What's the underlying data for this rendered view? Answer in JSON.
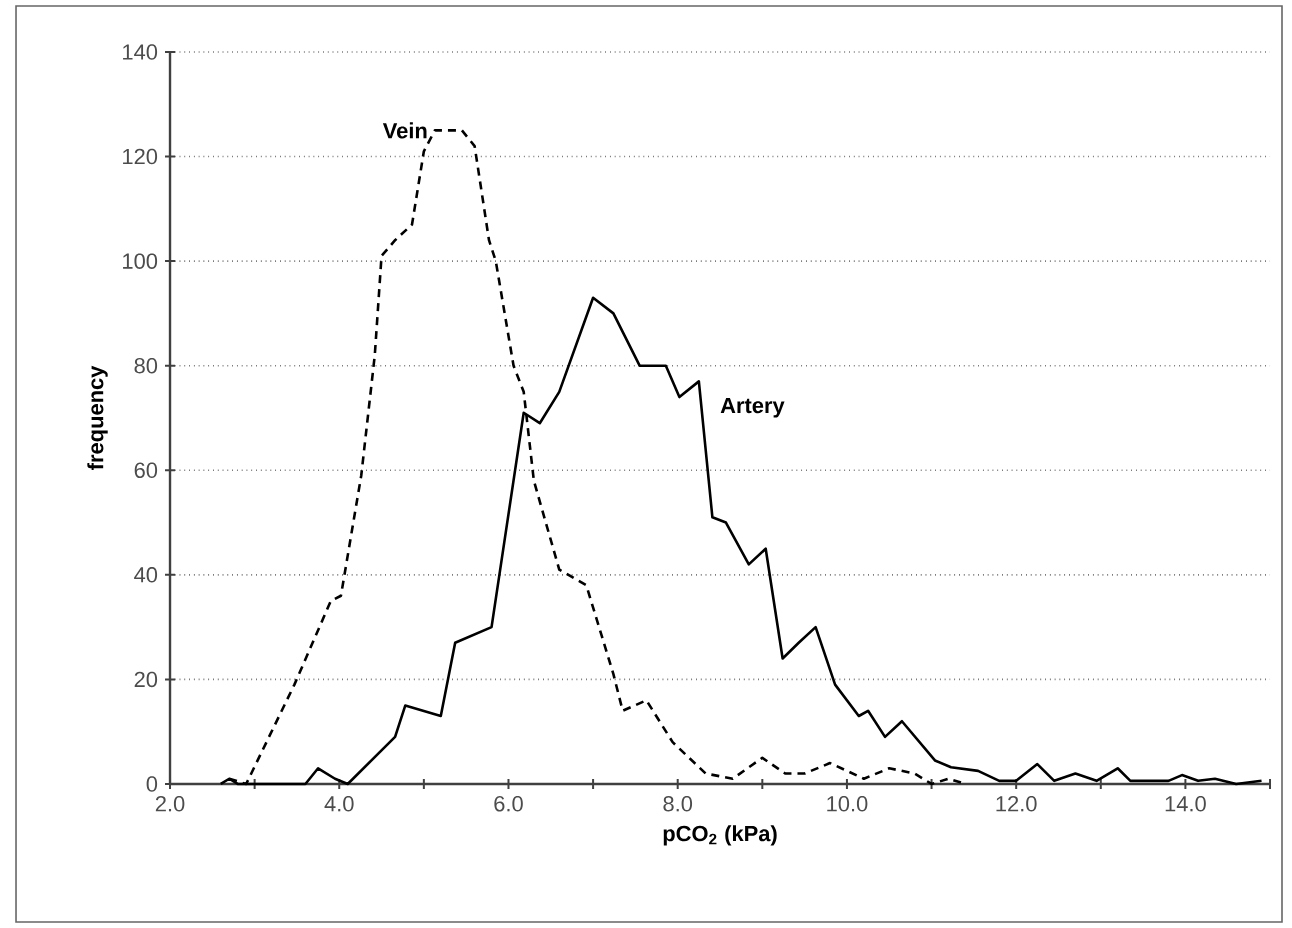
{
  "chart_data": {
    "type": "line",
    "xlabel": "pCO$_{2}$ (kPa)",
    "ylabel": "frequency",
    "xlim": [
      2,
      15
    ],
    "ylim": [
      0,
      140
    ],
    "xticks": [
      {
        "value": 2,
        "label": "2.0"
      },
      {
        "value": 3,
        "label": null
      },
      {
        "value": 4,
        "label": "4.0"
      },
      {
        "value": 5,
        "label": null
      },
      {
        "value": 6,
        "label": "6.0"
      },
      {
        "value": 7,
        "label": null
      },
      {
        "value": 8,
        "label": "8.0"
      },
      {
        "value": 9,
        "label": null
      },
      {
        "value": 10,
        "label": "10.0"
      },
      {
        "value": 11,
        "label": null
      },
      {
        "value": 12,
        "label": "12.0"
      },
      {
        "value": 13,
        "label": null
      },
      {
        "value": 14,
        "label": "14.0"
      },
      {
        "value": 15,
        "label": null
      }
    ],
    "yticks": [
      0,
      20,
      40,
      60,
      80,
      100,
      120,
      140
    ],
    "grid": "y",
    "legend": false,
    "marker": "none",
    "series": [
      {
        "name": "Vein",
        "color": "#000000",
        "line_style": "dashed",
        "x": [
          2.7,
          2.9,
          3.47,
          3.9,
          4.02,
          4.26,
          4.42,
          4.5,
          4.66,
          4.86,
          5.0,
          5.13,
          5.45,
          5.6,
          5.77,
          5.85,
          6.06,
          6.18,
          6.3,
          6.6,
          6.92,
          7.24,
          7.35,
          7.63,
          7.94,
          8.33,
          8.65,
          9.0,
          9.27,
          9.5,
          9.8,
          10.2,
          10.5,
          10.8,
          11.0,
          11.2,
          11.4
        ],
        "values": [
          1,
          0,
          19,
          35,
          36,
          59,
          82,
          101,
          104,
          107,
          121,
          125,
          125,
          122,
          104,
          100,
          80,
          75,
          58,
          41,
          38,
          21,
          14,
          16,
          8,
          2,
          1,
          5,
          2,
          2,
          4,
          1,
          3,
          2,
          0,
          1,
          0
        ]
      },
      {
        "name": "Artery",
        "color": "#000000",
        "line_style": "solid",
        "x": [
          2.6,
          2.7,
          2.8,
          3.6,
          3.75,
          3.95,
          4.1,
          4.66,
          4.78,
          5.2,
          5.37,
          5.8,
          6.18,
          6.37,
          6.6,
          7.0,
          7.24,
          7.55,
          7.86,
          8.02,
          8.25,
          8.41,
          8.57,
          8.84,
          9.04,
          9.24,
          9.43,
          9.63,
          9.86,
          10.14,
          10.25,
          10.45,
          10.65,
          11.04,
          11.23,
          11.55,
          11.8,
          12.0,
          12.25,
          12.45,
          12.7,
          12.95,
          13.2,
          13.35,
          13.8,
          13.96,
          14.15,
          14.35,
          14.6,
          14.9
        ],
        "values": [
          0,
          1,
          0,
          0,
          3,
          1,
          0,
          9,
          15,
          13,
          27,
          30,
          71,
          69,
          75,
          93,
          90,
          80,
          80,
          74,
          77,
          51,
          50,
          42,
          45,
          24,
          27,
          30,
          19,
          13,
          14,
          9,
          12,
          4.5,
          3.2,
          2.5,
          0.6,
          0.6,
          3.8,
          0.6,
          2,
          0.6,
          3,
          0.6,
          0.6,
          1.7,
          0.6,
          1,
          0,
          0.6
        ]
      }
    ]
  }
}
